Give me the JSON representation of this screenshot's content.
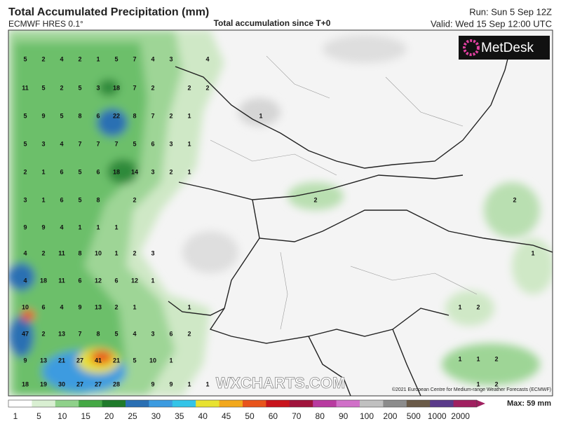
{
  "header": {
    "title": "Total Accumulated Precipitation (mm)",
    "model": "ECMWF HRES 0.1°",
    "subtitle": "Total accumulation since T+0",
    "run": "Run: Sun 5 Sep 12Z",
    "valid": "Valid: Wed 15 Sep 12:00 UTC"
  },
  "logo": "MetDesk",
  "watermark": "WXCHARTS.COM",
  "copyright": "©2021 European Centre for Medium-range Weather Forecasts (ECMWF)",
  "grid_rows": [
    [
      5,
      2,
      4,
      2,
      1,
      5,
      7,
      4,
      3,
      null,
      4
    ],
    [
      11,
      5,
      2,
      5,
      3,
      18,
      7,
      2,
      null,
      2,
      2
    ],
    [
      5,
      9,
      5,
      8,
      6,
      22,
      8,
      7,
      2,
      1
    ],
    [
      5,
      3,
      4,
      7,
      7,
      7,
      5,
      6,
      3,
      1
    ],
    [
      2,
      1,
      6,
      5,
      6,
      18,
      14,
      3,
      2,
      1
    ],
    [
      3,
      1,
      6,
      5,
      8,
      null,
      2
    ],
    [
      9,
      9,
      4,
      1,
      1,
      1
    ],
    [
      4,
      2,
      11,
      8,
      10,
      1,
      2,
      3
    ],
    [
      4,
      18,
      11,
      6,
      12,
      6,
      12,
      1
    ],
    [
      10,
      6,
      4,
      9,
      13,
      2,
      1,
      null,
      null,
      1
    ],
    [
      47,
      2,
      13,
      7,
      8,
      5,
      4,
      3,
      6,
      2
    ],
    [
      9,
      13,
      21,
      27,
      41,
      21,
      5,
      10,
      1
    ],
    [
      18,
      19,
      30,
      27,
      27,
      28,
      null,
      9,
      9,
      1,
      1
    ]
  ],
  "scattered": [
    1,
    2,
    2,
    1,
    1,
    2,
    1,
    1,
    2,
    1,
    2
  ],
  "colorbar": {
    "labels": [
      1,
      5,
      10,
      15,
      20,
      25,
      30,
      35,
      40,
      45,
      50,
      60,
      70,
      80,
      90,
      100,
      200,
      500,
      1000,
      2000
    ],
    "colors": [
      "#ffffff",
      "#d9efd2",
      "#8fd18a",
      "#45a845",
      "#1f7a2a",
      "#2a6fb3",
      "#3c9be0",
      "#33c4e8",
      "#e8e230",
      "#f2a81c",
      "#e8541c",
      "#c8141c",
      "#a0143c",
      "#b83aa0",
      "#d070c8",
      "#c0c0c0",
      "#8c8c8c",
      "#6a5a48",
      "#5a3a8a",
      "#a02060"
    ],
    "max": "Max: 59 mm"
  }
}
